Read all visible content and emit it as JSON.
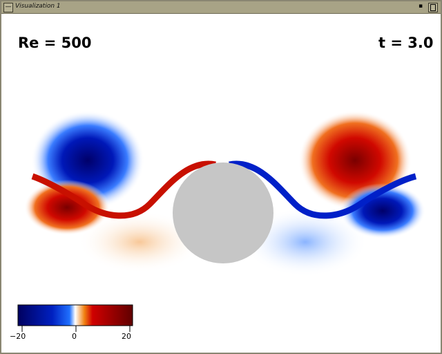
{
  "window": {
    "title": "Visualization 1"
  },
  "annotations": {
    "reynolds": "Re = 500",
    "time": "t = 3.0"
  },
  "colorbar": {
    "min": -20,
    "max": 20,
    "ticks": [
      "−20",
      "0",
      "20"
    ],
    "colors": [
      "#000060",
      "#0020c0",
      "#1050ff",
      "#ffffff",
      "#f08010",
      "#d00000",
      "#600000"
    ]
  },
  "obstacle": {
    "color": "#c6c6c6"
  }
}
